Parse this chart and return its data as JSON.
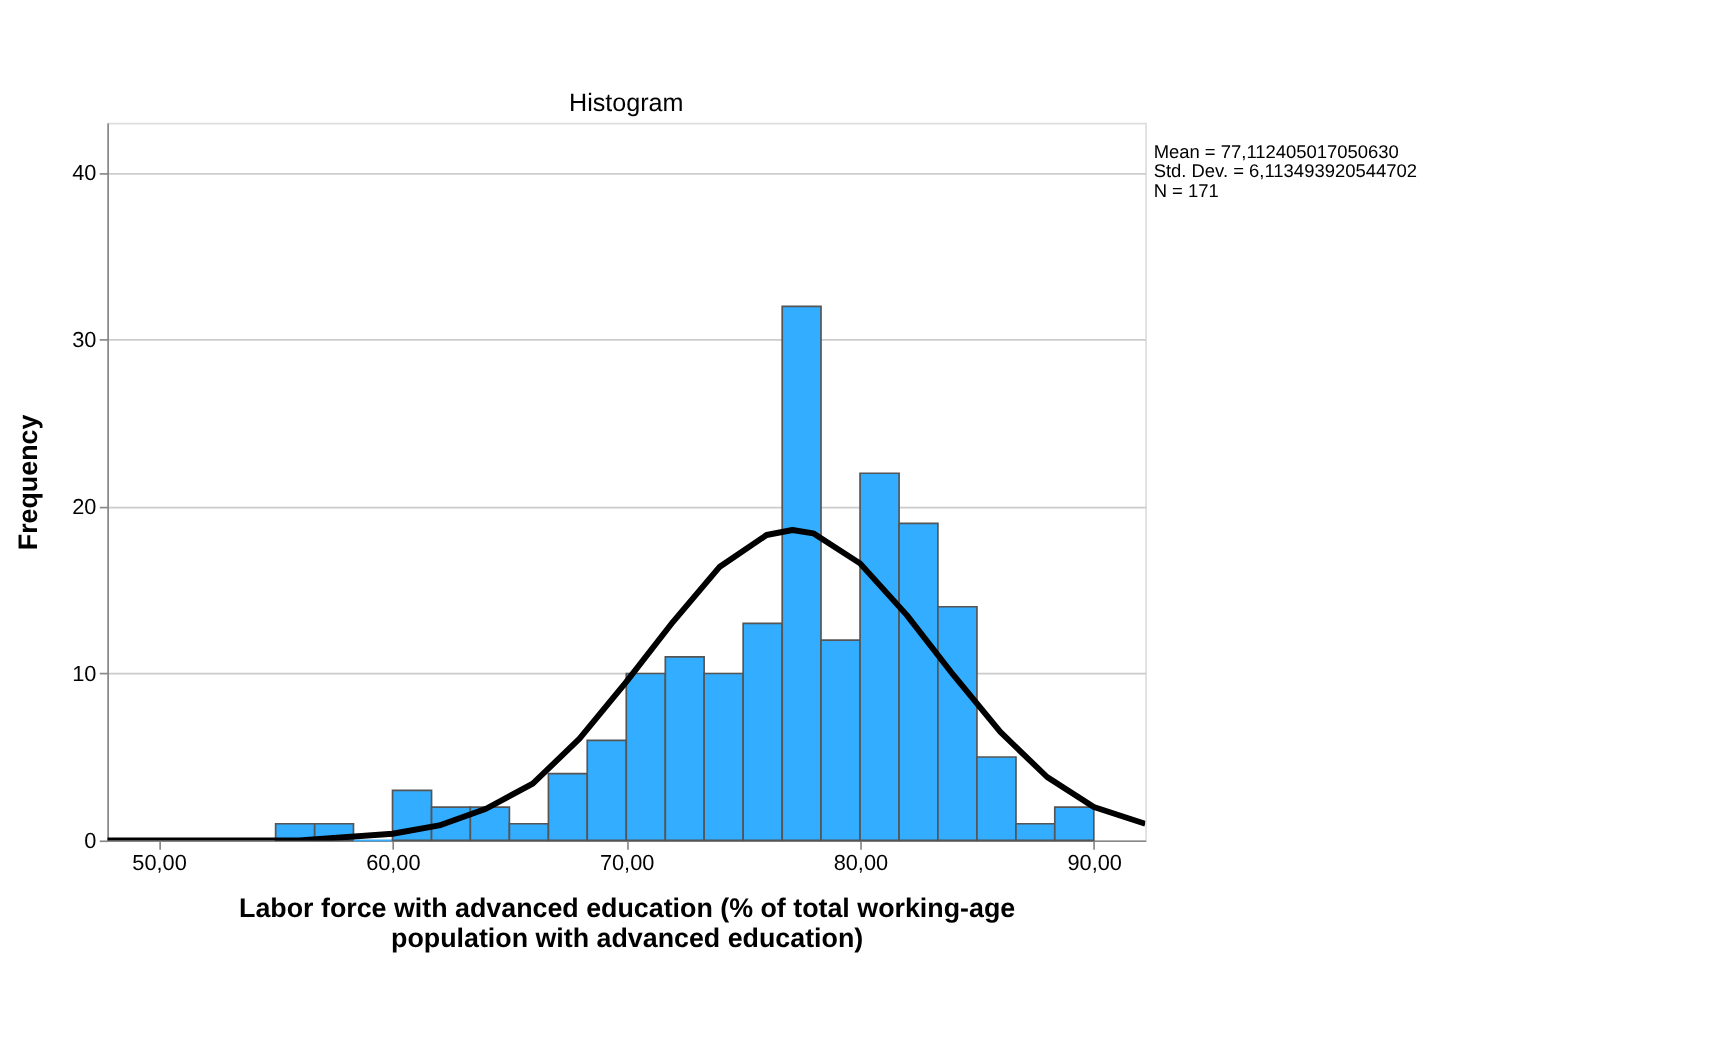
{
  "chart_data": {
    "type": "histogram",
    "title": "Histogram",
    "xlabel": "Labor force with advanced education (% of total working-age population with advanced education)",
    "ylabel": "Frequency",
    "bins": [
      55,
      56.67,
      58.33,
      60,
      61.67,
      63.33,
      65,
      66.67,
      68.33,
      70,
      71.67,
      73.33,
      75,
      76.67,
      78.33,
      80,
      81.67,
      83.33,
      85,
      86.67,
      88.33,
      90
    ],
    "series": [
      {
        "color": "#33adff",
        "values": [
          1,
          1,
          0,
          3,
          2,
          2,
          1,
          4,
          6,
          10,
          11,
          10,
          13,
          32,
          12,
          22,
          19,
          14,
          5,
          1,
          2
        ]
      },
      {
        "type": "line",
        "color": "#000000",
        "x": [
          47.8,
          52,
          56,
          60,
          62,
          64,
          66,
          68,
          70,
          72,
          74,
          76,
          77.11,
          78,
          80,
          82,
          84,
          86,
          88,
          90,
          92.2
        ],
        "values": [
          0,
          0,
          0,
          0.4,
          0.9,
          1.9,
          3.4,
          6.1,
          9.5,
          13.1,
          16.4,
          18.3,
          18.6,
          18.4,
          16.6,
          13.5,
          9.9,
          6.5,
          3.8,
          2,
          1
        ]
      }
    ],
    "annotations": [
      "Mean = 77,112405017050630",
      "Std. Dev. = 6,113493920544702",
      "N = 171"
    ],
    "xlim": [
      47.8,
      92.2
    ],
    "ylim": [
      0,
      43
    ],
    "xticks": [
      {
        "value": 50,
        "label": "50,00"
      },
      {
        "value": 60,
        "label": "60,00"
      },
      {
        "value": 70,
        "label": "70,00"
      },
      {
        "value": 80,
        "label": "80,00"
      },
      {
        "value": 90,
        "label": "90,00"
      }
    ],
    "yticks": [
      0,
      10,
      20,
      30,
      40
    ],
    "grid": "y",
    "marker": "none",
    "line_style": "solid"
  }
}
